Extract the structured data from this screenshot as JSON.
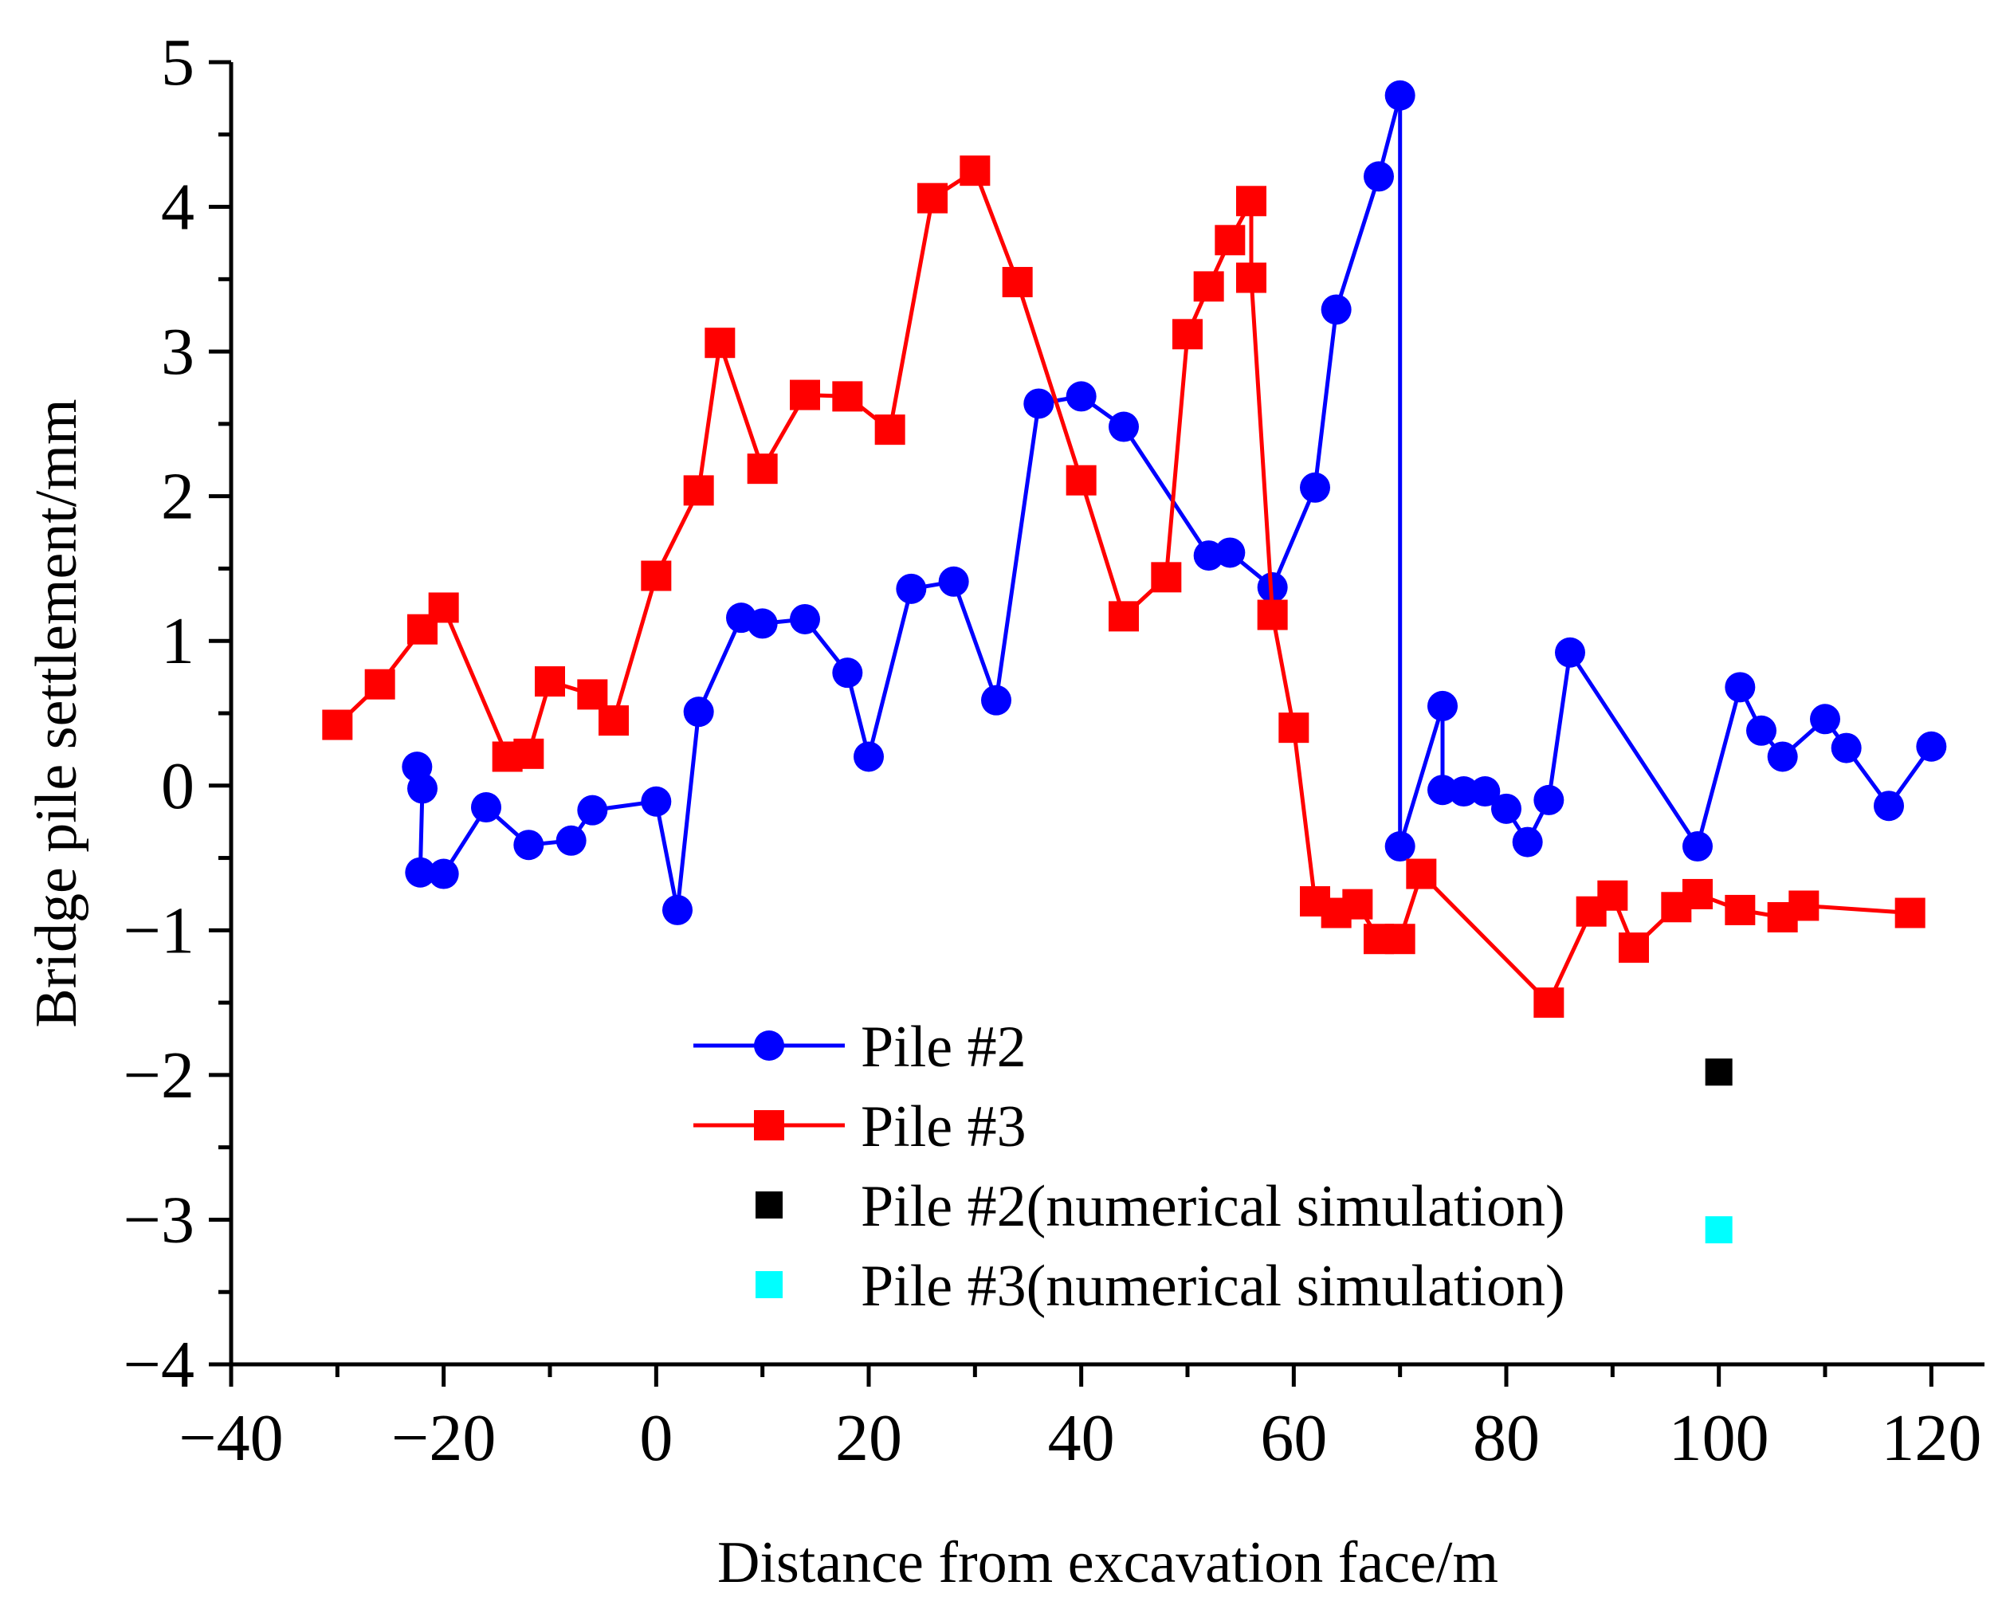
{
  "chart_data": {
    "type": "line",
    "title": "",
    "xlabel": "Distance from excavation face/m",
    "ylabel": "Bridge pile settlement/mm",
    "xlim": [
      -40,
      125
    ],
    "ylim": [
      -4,
      5
    ],
    "xticks": [
      -40,
      -20,
      0,
      20,
      40,
      60,
      80,
      100,
      120
    ],
    "yticks": [
      -4,
      -3,
      -2,
      -1,
      0,
      1,
      2,
      3,
      4,
      5
    ],
    "xtick_labels": [
      "−40",
      "−20",
      "0",
      "20",
      "40",
      "60",
      "80",
      "100",
      "120"
    ],
    "ytick_labels": [
      "−4",
      "−3",
      "−2",
      "−1",
      "0",
      "1",
      "2",
      "3",
      "4",
      "5"
    ],
    "grid": false,
    "legend_position": "lower-center",
    "series": [
      {
        "name": "Pile #2",
        "color": "#0000ff",
        "marker": "circle",
        "line": true,
        "x": [
          -22.5,
          -22,
          -22.2,
          -20,
          -16,
          -12,
          -8,
          -6,
          0,
          2,
          4,
          8,
          10,
          14,
          18,
          20,
          24,
          28,
          32,
          36,
          40,
          44,
          52,
          54,
          58,
          62,
          64,
          68,
          70,
          70,
          74,
          74,
          76,
          78,
          80,
          82,
          84,
          86,
          98,
          102,
          104,
          106,
          110,
          112,
          116,
          120
        ],
        "y": [
          0.13,
          -0.02,
          -0.6,
          -0.61,
          -0.15,
          -0.41,
          -0.38,
          -0.17,
          -0.11,
          -0.86,
          0.51,
          1.16,
          1.12,
          1.15,
          0.78,
          0.2,
          1.36,
          1.41,
          0.59,
          2.64,
          2.69,
          2.48,
          1.59,
          1.61,
          1.37,
          2.06,
          3.29,
          4.21,
          4.77,
          -0.42,
          0.55,
          -0.03,
          -0.04,
          -0.04,
          -0.16,
          -0.39,
          -0.1,
          0.92,
          -0.42,
          0.68,
          0.38,
          0.2,
          0.46,
          0.26,
          -0.14,
          0.27
        ]
      },
      {
        "name": "Pile #3",
        "color": "#ff0000",
        "marker": "square",
        "line": true,
        "x": [
          -30,
          -26,
          -22,
          -20,
          -14,
          -12,
          -10,
          -6,
          -4,
          0,
          4,
          6,
          10,
          14,
          18,
          22,
          26,
          30,
          34,
          40,
          44,
          48,
          50,
          52,
          54,
          56,
          56,
          58,
          60,
          62,
          64,
          66,
          68,
          70,
          72,
          84,
          88,
          90,
          92,
          96,
          98,
          102,
          106,
          108,
          118
        ],
        "y": [
          0.42,
          0.7,
          1.08,
          1.23,
          0.2,
          0.22,
          0.72,
          0.63,
          0.45,
          1.45,
          2.04,
          3.06,
          2.19,
          2.7,
          2.69,
          2.46,
          4.06,
          4.25,
          3.48,
          2.11,
          1.17,
          1.44,
          3.12,
          3.45,
          3.77,
          4.04,
          3.51,
          1.18,
          0.4,
          -0.8,
          -0.88,
          -0.82,
          -1.06,
          -1.06,
          -0.61,
          -1.5,
          -0.87,
          -0.76,
          -1.12,
          -0.84,
          -0.75,
          -0.86,
          -0.91,
          -0.83,
          -0.88
        ]
      },
      {
        "name": "Pile #2(numerical simulation)",
        "color": "#000000",
        "marker": "square",
        "line": false,
        "x": [
          100
        ],
        "y": [
          -1.98
        ]
      },
      {
        "name": "Pile #3(numerical simulation)",
        "color": "#00ffff",
        "marker": "square",
        "line": false,
        "x": [
          100
        ],
        "y": [
          -3.07
        ]
      }
    ]
  }
}
